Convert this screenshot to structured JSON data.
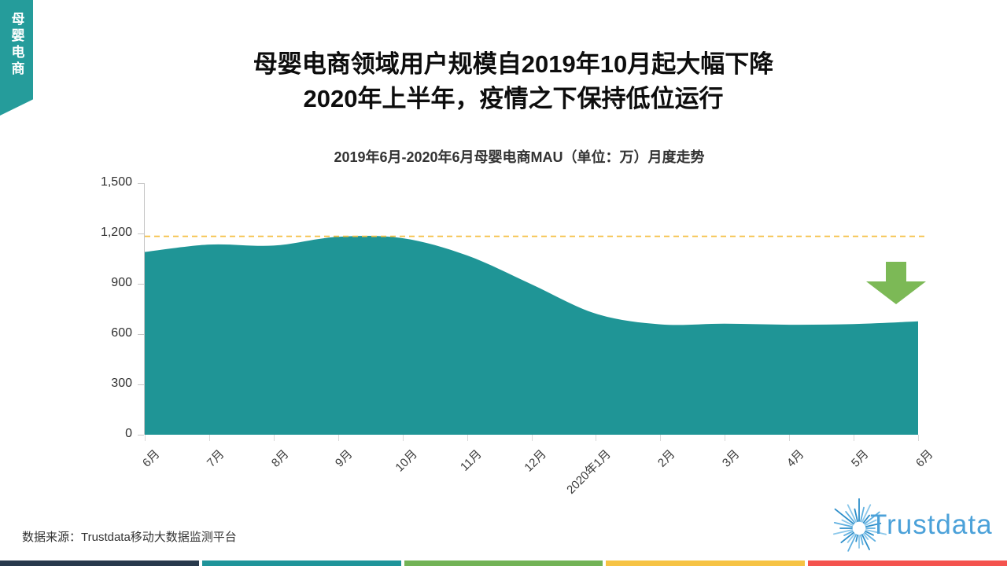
{
  "tab": {
    "label": "母婴电商"
  },
  "title": {
    "line1": "母婴电商领域用户规模自2019年10月起大幅下降",
    "line2": "2020年上半年，疫情之下保持低位运行"
  },
  "chart_data": {
    "type": "area",
    "title": "2019年6月-2020年6月母婴电商MAU（单位：万）月度走势",
    "unit": "万",
    "categories": [
      "6月",
      "7月",
      "8月",
      "9月",
      "10月",
      "11月",
      "12月",
      "2020年1月",
      "2月",
      "3月",
      "4月",
      "5月",
      "6月"
    ],
    "values": [
      1090,
      1134,
      1128,
      1180,
      1172,
      1069,
      897,
      722,
      658,
      662,
      656,
      660,
      676
    ],
    "ylim": [
      0,
      1500
    ],
    "yticks": [
      0,
      300,
      600,
      900,
      1200,
      1500
    ],
    "ytick_labels": [
      "0",
      "300",
      "600",
      "900",
      "1,200",
      "1,500"
    ],
    "reference_line": {
      "value": 1183,
      "style": "dashed"
    },
    "smooth": true,
    "grid": false,
    "legend": "none",
    "annotation": {
      "type": "down-arrow",
      "meaning": "大幅下降"
    }
  },
  "colors": {
    "area": "#1f9596",
    "tab": "#259c9b",
    "dashed_line": "#f5bf42",
    "arrow": "#7cb956",
    "logo_blue": "#4ba1d9",
    "strip": [
      "#28394c",
      "#1f949a",
      "#72b356",
      "#f6c344",
      "#f4534e"
    ]
  },
  "footer": {
    "source": "数据来源：Trustdata移动大数据监测平台"
  },
  "logo": {
    "text": "Trustdata"
  }
}
